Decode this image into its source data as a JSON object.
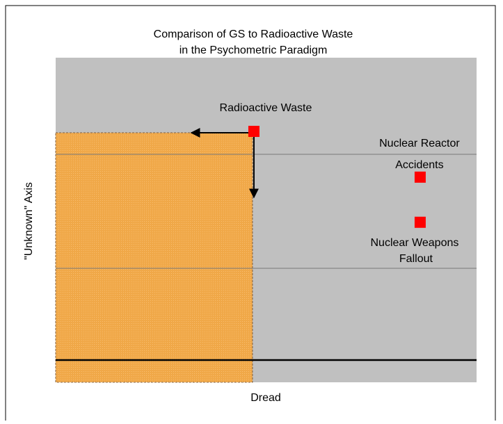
{
  "chart_data": {
    "type": "scatter",
    "title": [
      "Comparison of GS to Radioactive Waste",
      "in the Psychometric Paradigm"
    ],
    "x_label": "Dread",
    "y_label": "\"Unknown\" Axis",
    "series": [
      {
        "color": "#ff0000",
        "labels": [
          [
            "Radioactive Waste"
          ],
          [
            "Nuclear Reactor",
            "Accidents"
          ],
          [
            "Nuclear Weapons",
            "Fallout"
          ]
        ],
        "x": [
          4.71,
          8.66,
          8.66
        ],
        "values": [
          7.73,
          6.32,
          4.93
        ]
      }
    ],
    "xlim": [
      0,
      10
    ],
    "ylim": [
      0,
      10
    ],
    "highlight_color": "#f0a848",
    "plot_color": "#c0c0c0"
  }
}
